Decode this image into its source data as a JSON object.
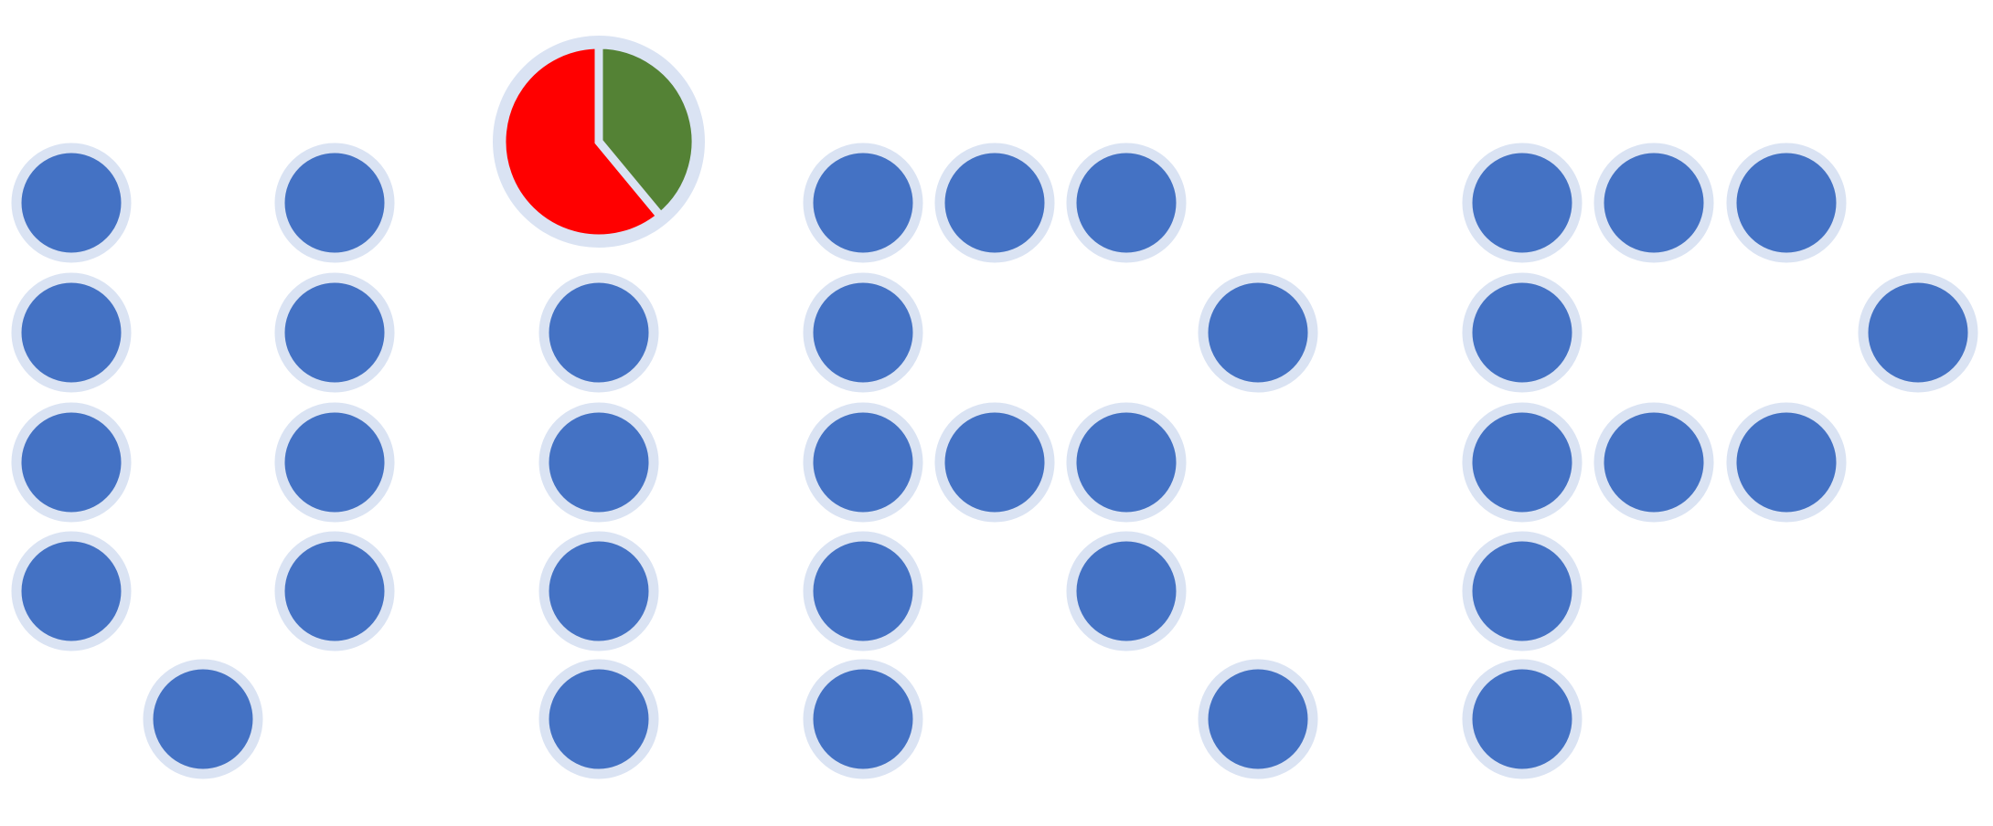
{
  "colors": {
    "background": "#FFFFFF",
    "dot_fill": "#4472C4",
    "dot_ring": "#DAE3F3",
    "pie_remaining": "#FF0000",
    "pie_progress": "#548235"
  },
  "icons": {
    "dot": "circle-dot-icon",
    "progress": "pie-progress-icon"
  },
  "progress_pie": {
    "value": 0.39
  }
}
